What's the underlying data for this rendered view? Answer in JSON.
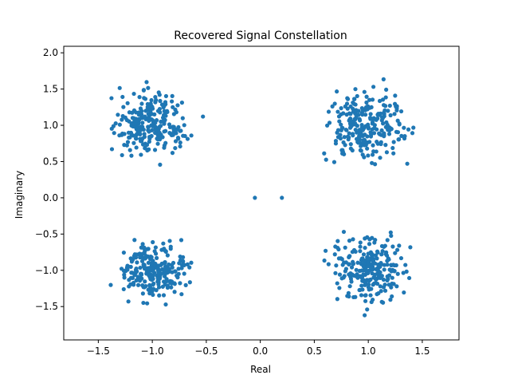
{
  "chart_data": {
    "type": "scatter",
    "title": "Recovered Signal Constellation",
    "xlabel": "Real",
    "ylabel": "Imaginary",
    "xlim": [
      -1.82,
      1.84
    ],
    "ylim": [
      -1.96,
      2.09
    ],
    "xticks": [
      -1.5,
      -1.0,
      -0.5,
      0.0,
      0.5,
      1.0,
      1.5
    ],
    "xtick_labels": [
      "−1.5",
      "−1.0",
      "−0.5",
      "0.0",
      "0.5",
      "1.0",
      "1.5"
    ],
    "yticks": [
      -1.5,
      -1.0,
      -0.5,
      0.0,
      0.5,
      1.0,
      1.5,
      2.0
    ],
    "ytick_labels": [
      "−1.5",
      "−1.0",
      "−0.5",
      "0.0",
      "0.5",
      "1.0",
      "1.5",
      "2.0"
    ],
    "grid": false,
    "marker_color": "#1f77b4",
    "clusters": [
      {
        "center": [
          -1.0,
          1.0
        ],
        "x_range": [
          -1.68,
          -0.5
        ],
        "y_range": [
          0.35,
          1.78
        ]
      },
      {
        "center": [
          1.0,
          1.0
        ],
        "x_range": [
          0.48,
          1.66
        ],
        "y_range": [
          0.31,
          1.87
        ]
      },
      {
        "center": [
          -1.0,
          -1.0
        ],
        "x_range": [
          -1.6,
          -0.52
        ],
        "y_range": [
          -1.71,
          -0.5
        ]
      },
      {
        "center": [
          1.0,
          -1.0
        ],
        "x_range": [
          0.48,
          1.65
        ],
        "y_range": [
          -1.78,
          -0.32
        ]
      }
    ],
    "outlier_points": [
      {
        "x": -0.05,
        "y": 0.0
      },
      {
        "x": 0.2,
        "y": 0.0
      }
    ]
  }
}
